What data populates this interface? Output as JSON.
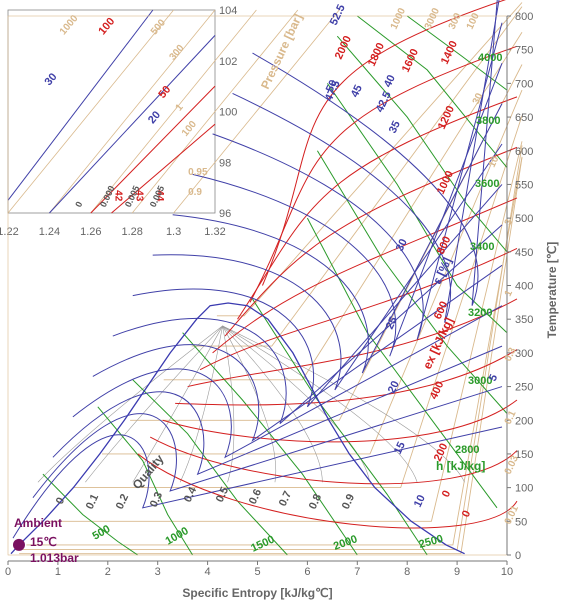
{
  "chart_data": {
    "type": "line",
    "title": "",
    "xlabel": "Specific Entropy [kJ/kg℃]",
    "ylabel": "Temperature [℃]",
    "xlim": [
      0,
      10
    ],
    "ylim": [
      0,
      800
    ],
    "x_ticks": [
      "0",
      "1",
      "2",
      "3",
      "4",
      "5",
      "6",
      "7",
      "8",
      "9",
      "10"
    ],
    "y_ticks": [
      "0",
      "50",
      "100",
      "150",
      "200",
      "250",
      "300",
      "350",
      "400",
      "450",
      "500",
      "550",
      "600",
      "650",
      "700",
      "750",
      "800"
    ],
    "grid": false,
    "series": [
      {
        "name": "Pressure [bar]",
        "color": "#d9b98d"
      },
      {
        "name": "h [kJ/kg]",
        "color": "#2a9a2a",
        "labels": [
          "500",
          "1000",
          "1500",
          "2000",
          "2500",
          "2800",
          "3000",
          "3200",
          "3400",
          "3600",
          "3800",
          "4000"
        ]
      },
      {
        "name": "ex [kJ/kg]",
        "color": "#d42020",
        "labels": [
          "0",
          "200",
          "400",
          "600",
          "800",
          "1000",
          "1200",
          "1400",
          "1600",
          "1800",
          "2000"
        ]
      },
      {
        "name": "ε [%]",
        "color": "#4040a8",
        "labels": [
          "5",
          "10",
          "15",
          "20",
          "25",
          "30",
          "35",
          "40",
          "42.5",
          "45",
          "47.5",
          "50",
          "52.5"
        ]
      },
      {
        "name": "Quality",
        "color": "#555555",
        "labels": [
          "0",
          "0.1",
          "0.2",
          "0.3",
          "0.4",
          "0.5",
          "0.6",
          "0.7",
          "0.8",
          "0.9"
        ]
      }
    ],
    "annotations": {
      "ambient_title": "Ambient",
      "ambient_temp": "15℃",
      "ambient_pressure": "1.013bar",
      "exergy_label": "ex [kJ/kg]",
      "enthalpy_label": "h [kJ/kg]",
      "efficiency_label": "ε [%]",
      "pressure_label": "Pressure [bar]",
      "quality_label": "Quality",
      "zero_label": "0",
      "pressure_values": [
        "1000",
        "3000",
        "300",
        "100",
        "30",
        "10",
        "3",
        "1",
        "0.3",
        "0.1",
        "0.03",
        "0.01"
      ]
    },
    "inset": {
      "x_ticks": [
        "1.22",
        "1.24",
        "1.26",
        "1.28",
        "1.3",
        "1.32"
      ],
      "y_ticks": [
        "104",
        "102",
        "100",
        "98",
        "96"
      ],
      "blue_labels": [
        "30",
        "20"
      ],
      "red_labels": [
        "100",
        "50"
      ],
      "tan_labels": [
        "1000",
        "500",
        "300",
        "100",
        "1"
      ],
      "eff_labels": [
        "42",
        "43",
        "44"
      ],
      "quality_labels": [
        "0",
        "0.000",
        "0.005",
        "0.005"
      ],
      "right_labels": [
        "0.95",
        "0.9"
      ]
    }
  }
}
